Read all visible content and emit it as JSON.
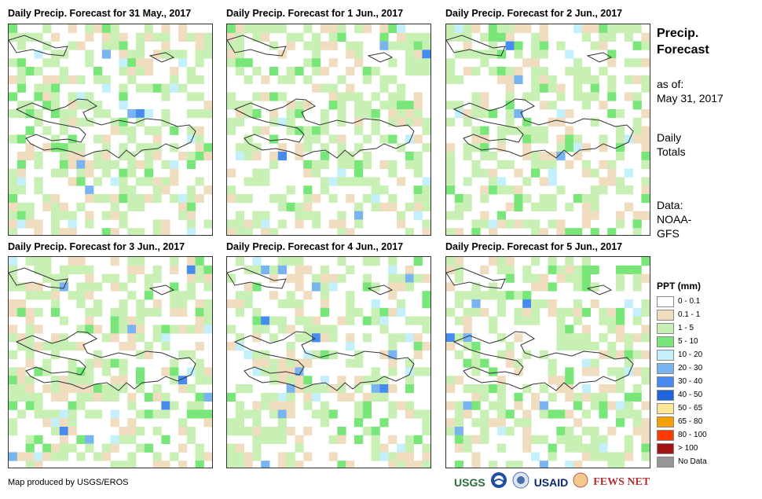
{
  "panels": [
    {
      "title": "Daily Precip. Forecast for 31 May., 2017",
      "seed": 11,
      "wet": 0.55
    },
    {
      "title": "Daily Precip. Forecast for 1 Jun., 2017",
      "seed": 23,
      "wet": 0.45
    },
    {
      "title": "Daily Precip. Forecast for 2 Jun., 2017",
      "seed": 37,
      "wet": 0.4
    },
    {
      "title": "Daily Precip. Forecast for 3 Jun., 2017",
      "seed": 41,
      "wet": 0.3
    },
    {
      "title": "Daily Precip. Forecast for 4 Jun., 2017",
      "seed": 53,
      "wet": 0.5
    },
    {
      "title": "Daily Precip. Forecast for 5 Jun., 2017",
      "seed": 67,
      "wet": 0.35
    }
  ],
  "side": {
    "title_line1": "Precip.",
    "title_line2": "Forecast",
    "asof_line1": "as of:",
    "asof_line2": "May 31, 2017",
    "daily_line1": "Daily",
    "daily_line2": "Totals",
    "data_line1": "Data:",
    "data_line2": "NOAA-",
    "data_line3": "GFS"
  },
  "legend": {
    "title": "PPT (mm)",
    "items": [
      {
        "label": "0 - 0.1",
        "color": "#ffffff"
      },
      {
        "label": "0.1 - 1",
        "color": "#f0dcbe"
      },
      {
        "label": "1 - 5",
        "color": "#c8f0b4"
      },
      {
        "label": "5 - 10",
        "color": "#78e678"
      },
      {
        "label": "10 - 20",
        "color": "#c3f0fa"
      },
      {
        "label": "20 - 30",
        "color": "#78b4f0"
      },
      {
        "label": "30 - 40",
        "color": "#468cf0"
      },
      {
        "label": "40 - 50",
        "color": "#1e64dc"
      },
      {
        "label": "50 - 65",
        "color": "#fae696"
      },
      {
        "label": "65 - 80",
        "color": "#f5a000"
      },
      {
        "label": "80 - 100",
        "color": "#ff3c00"
      },
      {
        "label": "> 100",
        "color": "#a01414"
      },
      {
        "label": "No Data",
        "color": "#969696"
      }
    ]
  },
  "credit": "Map produced by USGS/EROS",
  "logos": {
    "usgs": "USGS",
    "usaid": "USAID",
    "fewsnet": "FEWS NET"
  }
}
